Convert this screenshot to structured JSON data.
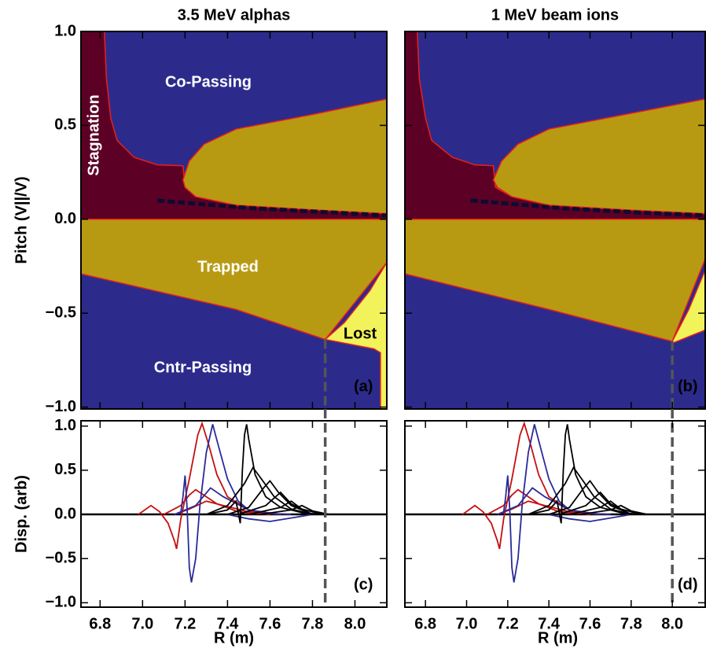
{
  "chart_data": [
    {
      "type": "region",
      "title": "3.5 MeV alphas",
      "ylabel": "Pitch (V||/V)",
      "panel_label": "(a)",
      "xlim": [
        6.71,
        8.15
      ],
      "ylim": [
        -1.01,
        1.0
      ],
      "xticks": [
        6.8,
        7.0,
        7.2,
        7.4,
        7.6,
        7.8,
        8.0
      ],
      "xtick_labels": false,
      "yticks": [
        {
          "value": -1,
          "label": "−1.0"
        },
        {
          "value": -0.5,
          "label": "−0.5"
        },
        {
          "value": 0,
          "label": "0.0"
        },
        {
          "value": 0.5,
          "label": "0.5"
        },
        {
          "value": 1,
          "label": "1.0"
        }
      ],
      "ytick_labels": true,
      "boundary_color": "#e8201c",
      "regions": [
        {
          "label": "Co-Passing",
          "color": "#2c2b8c",
          "text_color": "#ffffff",
          "x": [
            6.71,
            8.15,
            8.15,
            6.71
          ],
          "y": [
            1.0,
            1.0,
            0,
            0
          ]
        },
        {
          "label": "Cntr-Passing",
          "color": "#2c2b8c",
          "text_color": "#ffffff",
          "x": [
            6.71,
            8.15,
            8.15,
            6.71
          ],
          "y": [
            0,
            0,
            -1.01,
            -1.01
          ]
        },
        {
          "label": "Stagnation",
          "color": "#5c0026",
          "text_color": "#ffffff",
          "x": [
            6.71,
            6.82,
            6.83,
            6.85,
            6.88,
            6.96,
            7.07,
            7.19,
            7.2,
            7.25,
            7.44,
            7.81,
            8.15,
            8.15,
            6.71
          ],
          "y": [
            1.0,
            1.0,
            0.75,
            0.54,
            0.42,
            0.33,
            0.29,
            0.285,
            0.17,
            0.12,
            0.075,
            0.05,
            0.03,
            0,
            0
          ]
        },
        {
          "color": "#b89a12",
          "x": [
            7.19,
            7.22,
            7.29,
            7.44,
            7.81,
            8.15,
            8.15,
            7.81,
            7.44,
            7.25,
            7.2
          ],
          "y": [
            0.21,
            0.31,
            0.4,
            0.48,
            0.56,
            0.64,
            0.03,
            0.05,
            0.075,
            0.12,
            0.17
          ]
        },
        {
          "label": "Trapped",
          "color": "#b89a12",
          "text_color": "#ffffff",
          "x": [
            6.71,
            8.15,
            8.15,
            7.86,
            7.44,
            6.71
          ],
          "y": [
            0,
            0,
            -0.23,
            -0.64,
            -0.48,
            -0.29
          ]
        },
        {
          "label": "Lost",
          "color": "#f2f25a",
          "text_color": "#000000",
          "x": [
            7.86,
            7.95,
            8.07,
            8.15,
            8.15,
            8.12,
            8.12,
            8.09
          ],
          "y": [
            -0.64,
            -0.55,
            -0.38,
            -0.23,
            -1.01,
            -1.01,
            -0.71,
            -0.69
          ]
        }
      ],
      "stripe": {
        "color": "#0c0c30",
        "x": [
          7.07,
          7.5,
          7.9,
          8.15
        ],
        "y": [
          0.1,
          0.06,
          0.035,
          0.02
        ]
      },
      "marker_x": 7.86,
      "marker_top": -0.64,
      "marker_color": "#555555"
    },
    {
      "type": "region",
      "title": "1 MeV beam ions",
      "panel_label": "(b)",
      "xlim": [
        6.7,
        8.16
      ],
      "ylim": [
        -1.01,
        1.0
      ],
      "xticks": [
        6.8,
        7.0,
        7.2,
        7.4,
        7.6,
        7.8,
        8.0
      ],
      "xtick_labels": false,
      "yticks": [
        -1,
        -0.5,
        0,
        0.5,
        1
      ],
      "ytick_labels": false,
      "boundary_color": "#e8201c",
      "regions": [
        {
          "color": "#2c2b8c",
          "x": [
            6.7,
            8.16,
            8.16,
            6.7
          ],
          "y": [
            1.0,
            1.0,
            -1.01,
            -1.01
          ]
        },
        {
          "color": "#5c0026",
          "x": [
            6.7,
            6.76,
            6.77,
            6.8,
            6.83,
            6.93,
            7.04,
            7.13,
            7.14,
            7.22,
            7.4,
            7.78,
            8.16,
            8.16,
            6.7
          ],
          "y": [
            1.0,
            1.0,
            0.75,
            0.54,
            0.42,
            0.33,
            0.29,
            0.285,
            0.17,
            0.12,
            0.075,
            0.05,
            0.03,
            0,
            0
          ]
        },
        {
          "color": "#b89a12",
          "x": [
            7.13,
            7.17,
            7.25,
            7.4,
            7.78,
            8.16,
            8.16,
            7.78,
            7.4,
            7.22,
            7.15
          ],
          "y": [
            0.21,
            0.31,
            0.4,
            0.48,
            0.56,
            0.64,
            0.03,
            0.05,
            0.075,
            0.12,
            0.17
          ]
        },
        {
          "color": "#b89a12",
          "x": [
            6.7,
            8.16,
            8.16,
            8.0,
            7.4,
            6.7
          ],
          "y": [
            0,
            0,
            -0.21,
            -0.65,
            -0.48,
            -0.29
          ]
        },
        {
          "color": "#f2f25a",
          "x": [
            8.0,
            8.08,
            8.16,
            8.16,
            8.0
          ],
          "y": [
            -0.65,
            -0.48,
            -0.27,
            -0.59,
            -0.66
          ]
        }
      ],
      "stripe": {
        "color": "#0c0c30",
        "x": [
          7.02,
          7.45,
          7.85,
          8.16
        ],
        "y": [
          0.1,
          0.06,
          0.035,
          0.02
        ]
      },
      "marker_x": 8.0,
      "marker_top": -0.65,
      "marker_color": "#555555"
    },
    {
      "type": "line",
      "ylabel": "Disp. (arb)",
      "xlabel": "R (m)",
      "panel_label": "(c)",
      "xlim": [
        6.71,
        8.15
      ],
      "ylim": [
        -1.05,
        1.06
      ],
      "xticks": [
        6.8,
        {
          "value": 7,
          "label": "7.0"
        },
        7.2,
        7.4,
        7.6,
        7.8,
        {
          "value": 8,
          "label": "8.0"
        }
      ],
      "xtick_labels": true,
      "yticks": [
        {
          "value": -1,
          "label": "−1.0"
        },
        {
          "value": -0.5,
          "label": "−0.5"
        },
        {
          "value": 0,
          "label": "0.0"
        },
        {
          "value": 0.5,
          "label": "0.5"
        },
        {
          "value": 1,
          "label": "1.0"
        }
      ],
      "ytick_labels": true,
      "series": [
        {
          "color": "#c41010",
          "x": [
            6.98,
            7.04,
            7.08,
            7.12,
            7.15,
            7.16,
            7.18,
            7.22,
            7.26,
            7.28,
            7.31,
            7.35,
            7.4,
            7.5,
            7.6,
            7.7
          ],
          "values": [
            0,
            0.1,
            0.03,
            -0.1,
            -0.3,
            -0.39,
            -0.05,
            0.4,
            0.9,
            1.03,
            0.8,
            0.45,
            0.2,
            0.05,
            0.01,
            0
          ]
        },
        {
          "color": "#c41010",
          "x": [
            7.1,
            7.18,
            7.22,
            7.25,
            7.3,
            7.35,
            7.45,
            7.6
          ],
          "values": [
            0,
            0.1,
            0.22,
            0.28,
            0.2,
            0.12,
            0.03,
            0
          ]
        },
        {
          "color": "#c41010",
          "x": [
            7.15,
            7.22,
            7.3,
            7.38,
            7.5,
            7.65
          ],
          "values": [
            0,
            0.06,
            0.15,
            0.1,
            0.03,
            0
          ]
        },
        {
          "color": "#2a2a9a",
          "x": [
            7.15,
            7.18,
            7.19,
            7.2,
            7.21,
            7.22,
            7.23,
            7.25,
            7.27,
            7.3,
            7.33,
            7.36,
            7.4,
            7.45,
            7.5,
            7.6,
            7.7
          ],
          "values": [
            0,
            0.02,
            0.2,
            0.44,
            0.05,
            -0.6,
            -0.77,
            -0.5,
            0.1,
            0.7,
            1.02,
            0.75,
            0.4,
            0.15,
            0.05,
            0.01,
            0
          ]
        },
        {
          "color": "#2a2a9a",
          "x": [
            7.15,
            7.25,
            7.32,
            7.38,
            7.5,
            7.65
          ],
          "values": [
            0,
            0.1,
            0.3,
            0.2,
            0.05,
            0
          ]
        },
        {
          "color": "#2a2a9a",
          "x": [
            7.4,
            7.5,
            7.6,
            7.7,
            7.8
          ],
          "values": [
            0,
            -0.05,
            -0.08,
            -0.04,
            0
          ]
        },
        {
          "color": "#000000",
          "x": [
            7.3,
            7.4,
            7.44,
            7.46,
            7.47,
            7.48,
            7.49,
            7.5,
            7.53,
            7.58,
            7.65,
            7.75,
            7.85
          ],
          "values": [
            0,
            0.05,
            0.15,
            -0.1,
            0.5,
            0.9,
            1.02,
            0.85,
            0.45,
            0.2,
            0.08,
            0.02,
            0
          ]
        },
        {
          "color": "#000000",
          "x": [
            7.3,
            7.4,
            7.48,
            7.52,
            7.56,
            7.62,
            7.7,
            7.8
          ],
          "values": [
            0,
            0.1,
            0.35,
            0.53,
            0.4,
            0.2,
            0.06,
            0
          ]
        },
        {
          "color": "#000000",
          "x": [
            7.4,
            7.5,
            7.57,
            7.6,
            7.64,
            7.7,
            7.8
          ],
          "values": [
            0,
            0.08,
            0.3,
            0.38,
            0.25,
            0.1,
            0
          ]
        },
        {
          "color": "#000000",
          "x": [
            7.45,
            7.58,
            7.65,
            7.7,
            7.8
          ],
          "values": [
            0,
            0.1,
            0.25,
            0.12,
            0
          ]
        },
        {
          "color": "#000000",
          "x": [
            7.5,
            7.65,
            7.7,
            7.75,
            7.85
          ],
          "values": [
            0,
            0.08,
            0.15,
            0.06,
            0
          ]
        },
        {
          "color": "#000000",
          "x": [
            7.55,
            7.7,
            7.75,
            7.8,
            7.88
          ],
          "values": [
            0,
            0.05,
            0.1,
            0.04,
            0
          ]
        }
      ],
      "marker_x": 7.86,
      "marker_color": "#555555"
    },
    {
      "type": "line",
      "xlabel": "R (m)",
      "panel_label": "(d)",
      "xlim": [
        6.7,
        8.16
      ],
      "ylim": [
        -1.05,
        1.06
      ],
      "xticks": [
        6.8,
        {
          "value": 7,
          "label": "7.0"
        },
        7.2,
        7.4,
        7.6,
        7.8,
        {
          "value": 8,
          "label": "8.0"
        }
      ],
      "xtick_labels": true,
      "yticks": [
        -1,
        -0.5,
        0,
        0.5,
        1
      ],
      "ytick_labels": false,
      "series": [
        {
          "color": "#c41010",
          "x": [
            6.98,
            7.04,
            7.08,
            7.12,
            7.15,
            7.16,
            7.18,
            7.22,
            7.26,
            7.28,
            7.31,
            7.35,
            7.4,
            7.5,
            7.6,
            7.7
          ],
          "values": [
            0,
            0.1,
            0.03,
            -0.1,
            -0.3,
            -0.39,
            -0.05,
            0.4,
            0.9,
            1.03,
            0.8,
            0.45,
            0.2,
            0.05,
            0.01,
            0
          ]
        },
        {
          "color": "#c41010",
          "x": [
            7.1,
            7.18,
            7.22,
            7.25,
            7.3,
            7.35,
            7.45,
            7.6
          ],
          "values": [
            0,
            0.1,
            0.22,
            0.28,
            0.2,
            0.12,
            0.03,
            0
          ]
        },
        {
          "color": "#c41010",
          "x": [
            7.15,
            7.22,
            7.3,
            7.38,
            7.5,
            7.65
          ],
          "values": [
            0,
            0.06,
            0.15,
            0.1,
            0.03,
            0
          ]
        },
        {
          "color": "#2a2a9a",
          "x": [
            7.15,
            7.18,
            7.19,
            7.2,
            7.21,
            7.22,
            7.23,
            7.25,
            7.27,
            7.3,
            7.33,
            7.36,
            7.4,
            7.45,
            7.5,
            7.6,
            7.7
          ],
          "values": [
            0,
            0.02,
            0.2,
            0.44,
            0.05,
            -0.6,
            -0.77,
            -0.5,
            0.1,
            0.7,
            1.02,
            0.75,
            0.4,
            0.15,
            0.05,
            0.01,
            0
          ]
        },
        {
          "color": "#2a2a9a",
          "x": [
            7.15,
            7.25,
            7.32,
            7.38,
            7.5,
            7.65
          ],
          "values": [
            0,
            0.1,
            0.3,
            0.2,
            0.05,
            0
          ]
        },
        {
          "color": "#2a2a9a",
          "x": [
            7.4,
            7.5,
            7.6,
            7.7,
            7.8
          ],
          "values": [
            0,
            -0.05,
            -0.08,
            -0.04,
            0
          ]
        },
        {
          "color": "#000000",
          "x": [
            7.3,
            7.4,
            7.44,
            7.46,
            7.47,
            7.48,
            7.49,
            7.5,
            7.53,
            7.58,
            7.65,
            7.75,
            7.85
          ],
          "values": [
            0,
            0.05,
            0.15,
            -0.1,
            0.5,
            0.9,
            1.02,
            0.85,
            0.45,
            0.2,
            0.08,
            0.02,
            0
          ]
        },
        {
          "color": "#000000",
          "x": [
            7.3,
            7.4,
            7.48,
            7.52,
            7.56,
            7.62,
            7.7,
            7.8
          ],
          "values": [
            0,
            0.1,
            0.35,
            0.53,
            0.4,
            0.2,
            0.06,
            0
          ]
        },
        {
          "color": "#000000",
          "x": [
            7.4,
            7.5,
            7.57,
            7.6,
            7.64,
            7.7,
            7.8
          ],
          "values": [
            0,
            0.08,
            0.3,
            0.38,
            0.25,
            0.1,
            0
          ]
        },
        {
          "color": "#000000",
          "x": [
            7.45,
            7.58,
            7.65,
            7.7,
            7.8
          ],
          "values": [
            0,
            0.1,
            0.25,
            0.12,
            0
          ]
        },
        {
          "color": "#000000",
          "x": [
            7.5,
            7.65,
            7.7,
            7.75,
            7.85
          ],
          "values": [
            0,
            0.08,
            0.15,
            0.06,
            0
          ]
        },
        {
          "color": "#000000",
          "x": [
            7.55,
            7.7,
            7.75,
            7.8,
            7.88
          ],
          "values": [
            0,
            0.05,
            0.1,
            0.04,
            0
          ]
        }
      ],
      "marker_x": 8.0,
      "marker_color": "#555555"
    }
  ]
}
